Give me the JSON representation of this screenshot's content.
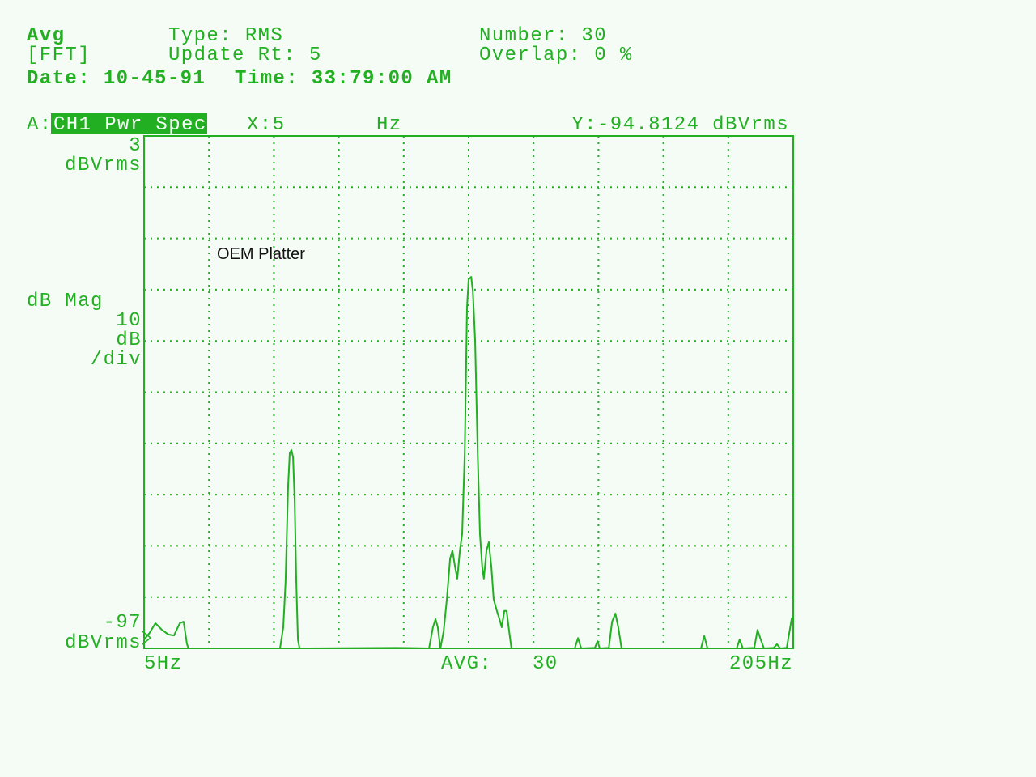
{
  "header": {
    "mode": "Avg",
    "analysis": "[FFT]",
    "type": "Type: RMS",
    "update_rate": "Update Rt: 5",
    "number": "Number: 30",
    "overlap": "Overlap: 0 %",
    "date": "Date: 10-45-91",
    "time": "Time: 33:79:00 AM"
  },
  "trace_bar": {
    "channel": "A:",
    "measurement": "CH1 Pwr Spec",
    "x_marker": "X:5",
    "x_unit": "Hz",
    "y_marker": "Y:-94.8124 dBVrms"
  },
  "chart_data": {
    "type": "line",
    "y_top_unit": "dBVrms",
    "y_bottom_unit": "dBVrms",
    "y_label": "dB Mag",
    "y_scale": "10",
    "y_scale_unit": "dB",
    "y_scale_per": "/div",
    "average_label": "AVG:",
    "average_count": "30",
    "annotation": "OEM Platter",
    "color": "#22b022",
    "grid": {
      "divisions": 10,
      "style": "dotted"
    },
    "xlim": [
      5,
      205
    ],
    "xticks": [
      {
        "value": 5,
        "label": "5Hz"
      },
      {
        "value": 205,
        "label": "205Hz"
      }
    ],
    "ylim": [
      -97,
      3
    ],
    "yticks": [
      3,
      -97
    ],
    "x": [
      5.0,
      6.7,
      8.5,
      10.5,
      12.5,
      14.2,
      16.0,
      17.2,
      18.2,
      18.7,
      46.9,
      47.9,
      48.6,
      49.4,
      49.9,
      50.4,
      50.9,
      51.4,
      51.9,
      52.4,
      52.9,
      82.8,
      92.8,
      94.0,
      94.8,
      95.5,
      96.3,
      97.3,
      98.3,
      99.3,
      100.0,
      100.8,
      101.5,
      102.3,
      103.0,
      103.8,
      104.5,
      105.0,
      105.8,
      106.3,
      107.0,
      107.8,
      108.5,
      109.2,
      109.7,
      110.5,
      111.2,
      112.0,
      112.7,
      113.7,
      114.5,
      115.2,
      116.0,
      116.7,
      117.5,
      118.2,
      137.7,
      138.7,
      139.7,
      143.9,
      144.7,
      145.4,
      148.2,
      149.2,
      150.2,
      151.1,
      152.1,
      176.6,
      177.6,
      178.6,
      187.6,
      188.5,
      189.5,
      193.0,
      194.0,
      195.0,
      196.0,
      199.0,
      200.0,
      201.0,
      203.0,
      204.5,
      205.0
    ],
    "values": [
      -95.3,
      -94.0,
      -92.1,
      -93.4,
      -94.3,
      -94.5,
      -92.1,
      -91.8,
      -96.1,
      -97.0,
      -97.0,
      -92.9,
      -84.2,
      -65.3,
      -58.9,
      -58.3,
      -59.7,
      -68.4,
      -84.2,
      -95.3,
      -97.0,
      -96.9,
      -97.0,
      -92.9,
      -91.3,
      -92.9,
      -97.0,
      -93.7,
      -87.4,
      -79.5,
      -77.9,
      -81.1,
      -83.4,
      -77.9,
      -74.7,
      -58.9,
      -30.5,
      -25.0,
      -24.5,
      -27.3,
      -36.8,
      -58.9,
      -74.7,
      -81.1,
      -83.4,
      -77.9,
      -76.3,
      -81.1,
      -87.4,
      -89.7,
      -91.3,
      -92.9,
      -89.7,
      -89.7,
      -93.7,
      -97.0,
      -97.0,
      -95.0,
      -97.0,
      -96.9,
      -95.6,
      -97.0,
      -96.9,
      -91.8,
      -90.2,
      -92.9,
      -97.0,
      -97.0,
      -94.6,
      -97.0,
      -97.0,
      -95.3,
      -97.0,
      -96.9,
      -93.4,
      -95.3,
      -97.0,
      -96.9,
      -96.2,
      -97.0,
      -96.9,
      -91.3,
      -90.5
    ]
  }
}
